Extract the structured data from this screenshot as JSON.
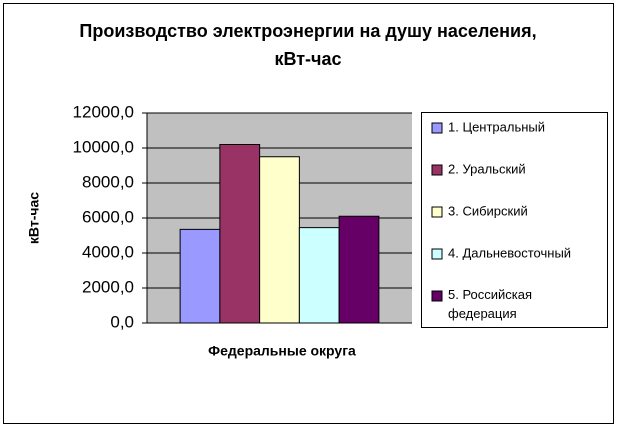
{
  "chart_data": {
    "type": "bar",
    "title": "Производство электроэнергии на душу населения, кВт-час",
    "x_label": "Федеральные округа",
    "y_label": "кВт-час",
    "categories": [
      null
    ],
    "series": [
      {
        "name": "1. Центральный",
        "color": "#9999ff",
        "values": [
          5350
        ]
      },
      {
        "name": "2. Уральский",
        "color": "#993366",
        "values": [
          10200
        ]
      },
      {
        "name": "3. Сибирский",
        "color": "#ffffcc",
        "values": [
          9500
        ]
      },
      {
        "name": "4. Дальневосточный",
        "color": "#ccffff",
        "values": [
          5450
        ]
      },
      {
        "name": "5. Российская федерация",
        "color": "#660066",
        "values": [
          6100
        ]
      }
    ],
    "ylim": [
      0,
      12000
    ],
    "yticks": [
      {
        "value": 0,
        "label": "0,0"
      },
      {
        "value": 2000,
        "label": "2000,0"
      },
      {
        "value": 4000,
        "label": "4000,0"
      },
      {
        "value": 6000,
        "label": "6000,0"
      },
      {
        "value": 8000,
        "label": "8000,0"
      },
      {
        "value": 10000,
        "label": "10000,0"
      },
      {
        "value": 12000,
        "label": "12000,0"
      }
    ],
    "grid": true,
    "legend": "right"
  }
}
